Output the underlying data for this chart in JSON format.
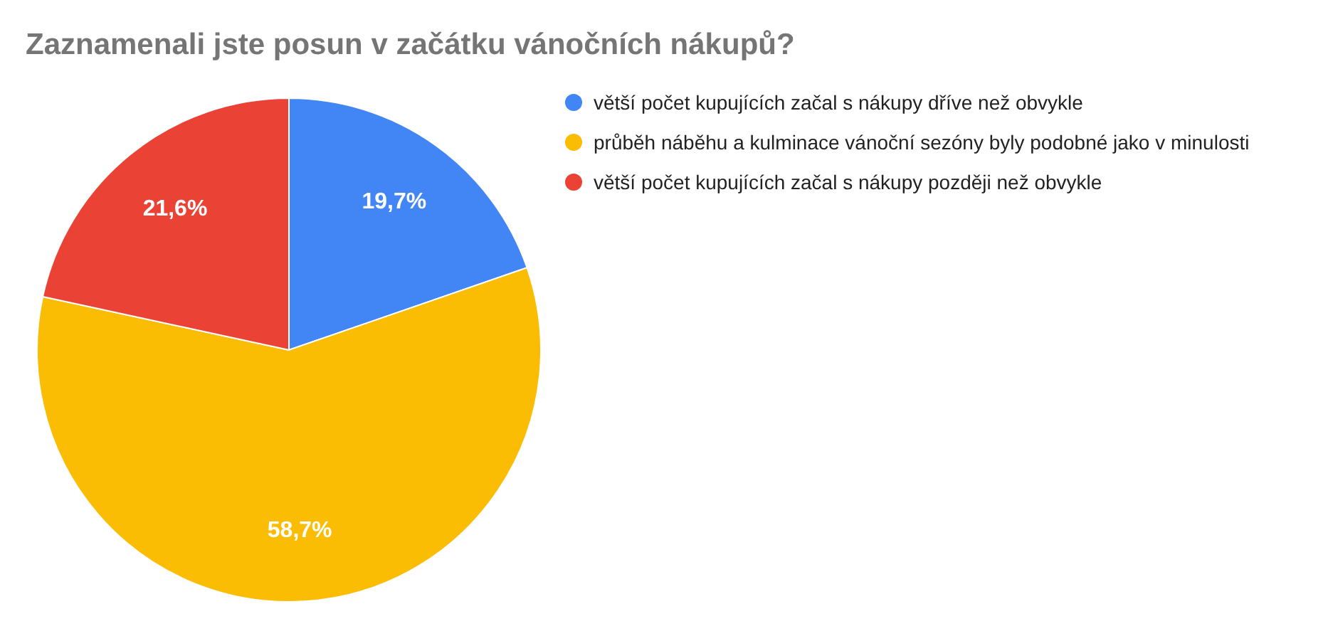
{
  "chart_data": {
    "type": "pie",
    "title": "Zaznamenali jste posun v začátku vánočních nákupů?",
    "categories": [
      "větší počet kupujících začal s nákupy dříve než obvykle",
      "průběh náběhu a kulminace vánoční sezóny byly podobné jako v minulosti",
      "větší počet kupujících začal s nákupy později než obvykle"
    ],
    "values": [
      19.7,
      58.7,
      21.6
    ],
    "value_labels": [
      "19,7%",
      "58,7%",
      "21,6%"
    ],
    "colors": [
      "#4285f4",
      "#fbbc04",
      "#ea4335"
    ],
    "legend": "right"
  }
}
